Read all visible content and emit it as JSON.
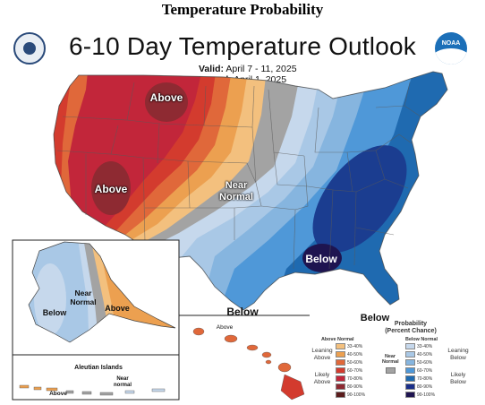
{
  "page_heading": "Temperature Probability",
  "map": {
    "title": "6-10 Day Temperature Outlook",
    "valid_label": "Valid:",
    "valid_value": "April 7 - 11, 2025",
    "issued_label": "Issued:",
    "issued_value": "April 1, 2025",
    "logos": [
      "department-of-commerce-seal",
      "noaa-logo"
    ],
    "noaa_logo_text": "NOAA",
    "conus_labels": {
      "above_north": "Above",
      "above_west": "Above",
      "near_normal": "Near Normal",
      "below_southeast": "Below",
      "below_south": "Below",
      "below_east": "Below"
    },
    "alaska_labels": {
      "below": "Below",
      "near_normal": "Near Normal",
      "above": "Above"
    },
    "aleutian": {
      "title": "Aleutian Islands",
      "near_normal": "Near normal",
      "above": "Above"
    },
    "hawaii_label": "Above"
  },
  "legend": {
    "title": "Probability (Percent Chance)",
    "above_head": "Above Normal",
    "below_head": "Below Normal",
    "near_normal_label": "Near Normal",
    "leaning_above": "Leaning Above",
    "likely_above": "Likely Above",
    "leaning_below": "Leaning Below",
    "likely_below": "Likely Below",
    "ranges": [
      "33-40%",
      "40-50%",
      "50-60%",
      "60-70%",
      "70-80%",
      "80-90%",
      "90-100%"
    ],
    "above_colors": [
      "#f3c07e",
      "#eca050",
      "#e0683a",
      "#d33b2e",
      "#c2263a",
      "#8e2a32",
      "#5a1c1c"
    ],
    "below_colors": [
      "#c6d8ec",
      "#a9c8e6",
      "#86b5df",
      "#4f98d8",
      "#1f6ab0",
      "#1b2f8a",
      "#1e1450"
    ],
    "near_normal_color": "#a3a3a3"
  }
}
